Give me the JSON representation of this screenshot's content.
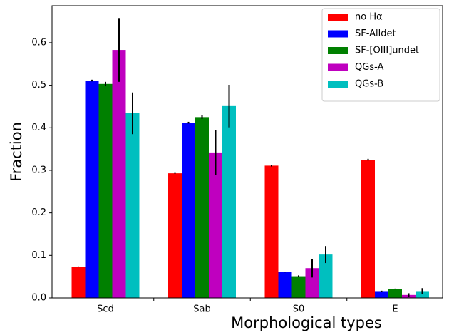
{
  "chart_data": {
    "type": "bar",
    "xlabel": "Morphological types",
    "ylabel": "Fraction",
    "categories": [
      "Scd",
      "Sab",
      "S0",
      "E"
    ],
    "series": [
      {
        "name": "no Hα",
        "color": "#ff0000",
        "values": [
          0.073,
          0.293,
          0.311,
          0.325
        ],
        "errors": [
          0.001,
          0.001,
          0.002,
          0.002
        ]
      },
      {
        "name": "SF-Alldet",
        "color": "#0000ff",
        "values": [
          0.511,
          0.412,
          0.061,
          0.016
        ],
        "errors": [
          0.002,
          0.002,
          0.001,
          0.001
        ]
      },
      {
        "name": "SF-[OIII]undet",
        "color": "#008000",
        "values": [
          0.503,
          0.425,
          0.051,
          0.021
        ],
        "errors": [
          0.005,
          0.004,
          0.002,
          0.001
        ]
      },
      {
        "name": "QGs-A",
        "color": "#bf00bf",
        "values": [
          0.583,
          0.342,
          0.07,
          0.007
        ],
        "errors": [
          0.075,
          0.053,
          0.022,
          0.004
        ]
      },
      {
        "name": "QGs-B",
        "color": "#00bfbf",
        "values": [
          0.434,
          0.451,
          0.102,
          0.016
        ],
        "errors": [
          0.049,
          0.05,
          0.02,
          0.007
        ]
      }
    ],
    "ylim": [
      0,
      0.687
    ],
    "yticks": [
      {
        "value": 0,
        "label": "0.0"
      },
      0.1,
      0.2,
      0.3,
      0.4,
      0.5,
      0.6
    ],
    "legend": "upper right"
  }
}
